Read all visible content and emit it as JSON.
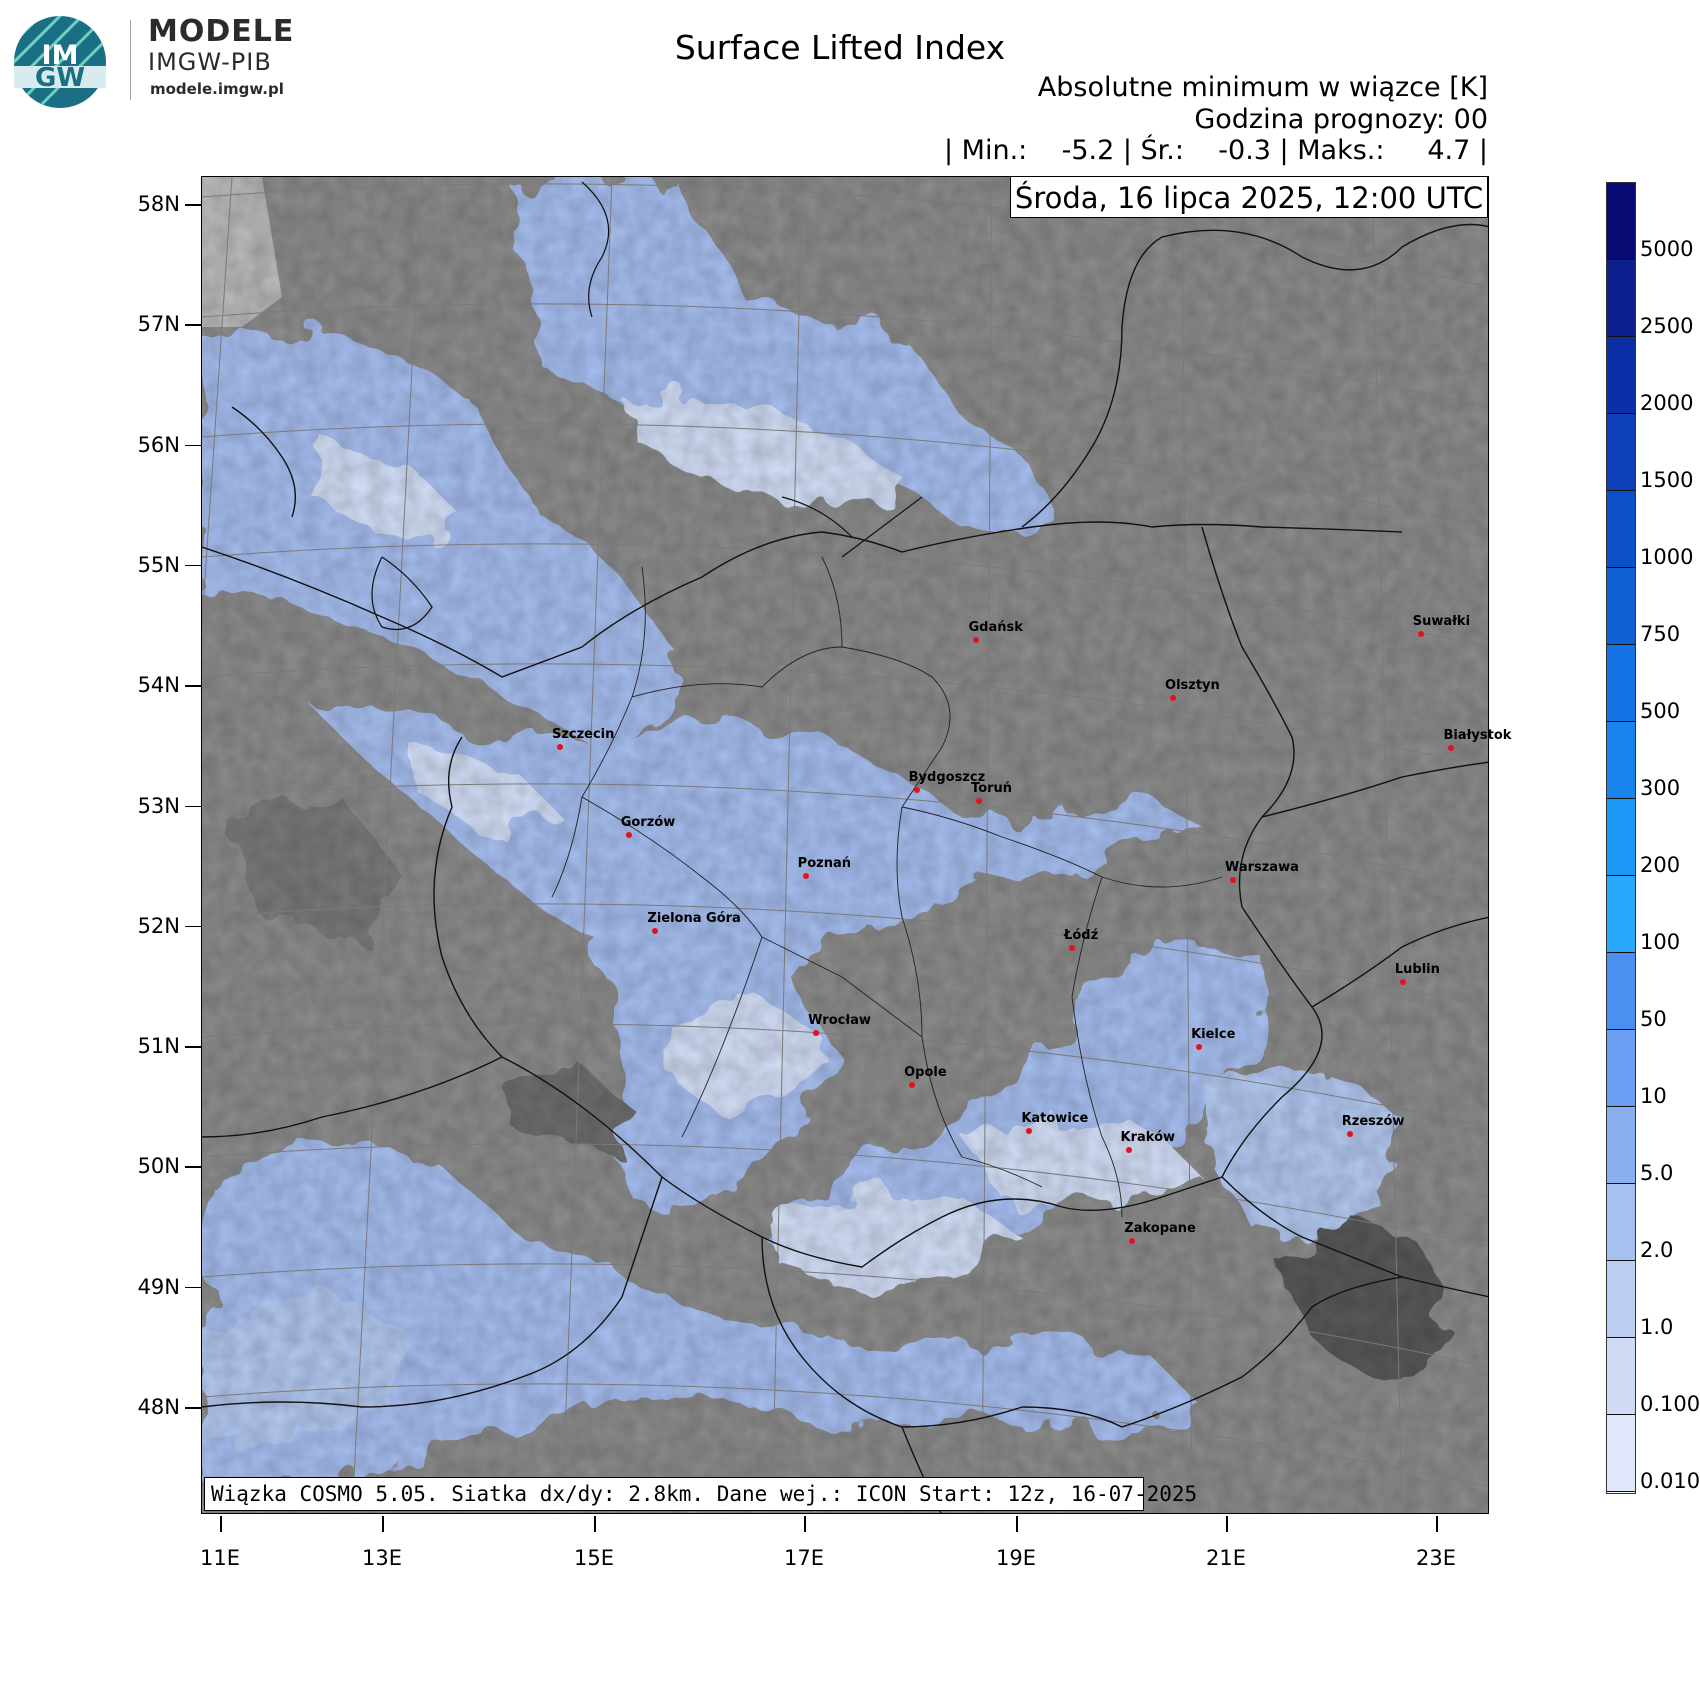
{
  "brand": {
    "logo_text_top": "IM",
    "logo_text_bottom": "GW",
    "title": "MODELE",
    "subtitle": "IMGW-PIB",
    "url": "modele.imgw.pl"
  },
  "header": {
    "title": "Surface Lifted Index",
    "subtitle": "Absolutne minimum w wiązce [K]",
    "forecast_hour": "Godzina prognozy: 00",
    "stats": "| Min.:    -5.2 | Śr.:    -0.3 | Maks.:     4.7 |",
    "date": "Środa, 16 lipca 2025, 12:00 UTC"
  },
  "footer": "Wiązka COSMO 5.05. Siatka dx/dy: 2.8km. Dane wej.: ICON Start: 12z, 16-07-2025",
  "axes": {
    "lat_labels": [
      "58N",
      "57N",
      "56N",
      "55N",
      "54N",
      "53N",
      "52N",
      "51N",
      "50N",
      "49N",
      "48N"
    ],
    "lon_labels": [
      "11E",
      "13E",
      "15E",
      "17E",
      "19E",
      "21E",
      "23E"
    ]
  },
  "cities": [
    {
      "name": "Gdańsk",
      "lon": 18.6,
      "lat": 54.35
    },
    {
      "name": "Olsztyn",
      "lon": 20.5,
      "lat": 53.78
    },
    {
      "name": "Suwałki",
      "lon": 22.93,
      "lat": 54.1
    },
    {
      "name": "Białystok",
      "lon": 23.16,
      "lat": 53.13
    },
    {
      "name": "Szczecin",
      "lon": 14.55,
      "lat": 53.43
    },
    {
      "name": "Bydgoszcz",
      "lon": 18.0,
      "lat": 53.12
    },
    {
      "name": "Toruń",
      "lon": 18.6,
      "lat": 53.01
    },
    {
      "name": "Gorzów",
      "lon": 15.23,
      "lat": 52.73
    },
    {
      "name": "Poznań",
      "lon": 16.93,
      "lat": 52.41
    },
    {
      "name": "Warszawa",
      "lon": 21.01,
      "lat": 52.23
    },
    {
      "name": "Zielona Góra",
      "lon": 15.5,
      "lat": 51.94
    },
    {
      "name": "Łódź",
      "lon": 19.46,
      "lat": 51.76
    },
    {
      "name": "Lublin",
      "lon": 22.57,
      "lat": 51.25
    },
    {
      "name": "Wrocław",
      "lon": 17.03,
      "lat": 51.11
    },
    {
      "name": "Kielce",
      "lon": 20.63,
      "lat": 50.87
    },
    {
      "name": "Opole",
      "lon": 17.93,
      "lat": 50.67
    },
    {
      "name": "Rzeszów",
      "lon": 22.0,
      "lat": 50.04
    },
    {
      "name": "Katowice",
      "lon": 19.02,
      "lat": 50.26
    },
    {
      "name": "Kraków",
      "lon": 19.94,
      "lat": 50.06
    },
    {
      "name": "Zakopane",
      "lon": 19.95,
      "lat": 49.3
    }
  ],
  "colorbar": {
    "labels": [
      "5000",
      "2500",
      "2000",
      "1500",
      "1000",
      "750",
      "500",
      "300",
      "200",
      "100",
      "50",
      "10",
      "5.0",
      "2.0",
      "1.0",
      "0.100",
      "0.010"
    ],
    "colors": [
      "#0a0a74",
      "#0b1f8e",
      "#0b2fa6",
      "#0c3fb8",
      "#0d4fc8",
      "#1060d6",
      "#1572e4",
      "#1a84ee",
      "#1e98f7",
      "#2aa8fb",
      "#4b8ff0",
      "#6a9ef2",
      "#8aafef",
      "#a6c0f0",
      "#bccdf2",
      "#cfdaf5",
      "#e2e8fb"
    ]
  }
}
